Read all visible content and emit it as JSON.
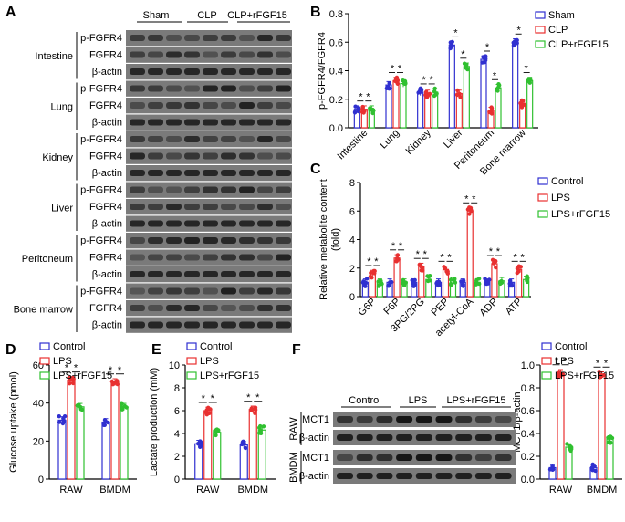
{
  "panels": {
    "A": {
      "letter": "A",
      "groups": [
        "Sham",
        "CLP",
        "CLP+rFGF15"
      ],
      "tissues": [
        {
          "name": "Intestine",
          "rows": [
            "p-FGFR4",
            "FGFR4",
            "β-actin"
          ]
        },
        {
          "name": "Lung",
          "rows": [
            "p-FGFR4",
            "FGFR4",
            "β-actin"
          ]
        },
        {
          "name": "Kidney",
          "rows": [
            "p-FGFR4",
            "FGFR4",
            "β-actin"
          ]
        },
        {
          "name": "Liver",
          "rows": [
            "p-FGFR4",
            "FGFR4",
            "β-actin"
          ]
        },
        {
          "name": "Peritoneum",
          "rows": [
            "p-FGFR4",
            "FGFR4",
            "β-actin"
          ]
        },
        {
          "name": "Bone marrow",
          "rows": [
            "p-FGFR4",
            "FGFR4",
            "β-actin"
          ]
        }
      ]
    },
    "F_blot": {
      "letter": "F",
      "groups": [
        "Control",
        "LPS",
        "LPS+rFGF15"
      ],
      "cells": [
        {
          "name": "RAW",
          "rows": [
            "MCT1",
            "β-actin"
          ]
        },
        {
          "name": "BMDM",
          "rows": [
            "MCT1",
            "β-actin"
          ]
        }
      ]
    }
  },
  "colors": {
    "control": "#3030d0",
    "treat": "#e83030",
    "rescue": "#30c030"
  },
  "chart_data": [
    {
      "id": "B",
      "letter": "B",
      "type": "bar",
      "ylabel": "p-FGFR4/FGFR4",
      "ylim": [
        0,
        0.8
      ],
      "yticks": [
        "0.0",
        "0.2",
        "0.4",
        "0.6",
        "0.8"
      ],
      "categories": [
        "Intestine",
        "Lung",
        "Kidney",
        "Liver",
        "Peritoneum",
        "Bone marrow"
      ],
      "legend": [
        "Sham",
        "CLP",
        "CLP+rFGF15"
      ],
      "series": [
        {
          "name": "Sham",
          "values": [
            0.13,
            0.3,
            0.25,
            0.58,
            0.48,
            0.6
          ]
        },
        {
          "name": "CLP",
          "values": [
            0.13,
            0.33,
            0.24,
            0.24,
            0.12,
            0.17
          ]
        },
        {
          "name": "CLP+rFGF15",
          "values": [
            0.13,
            0.31,
            0.25,
            0.43,
            0.28,
            0.33
          ]
        }
      ],
      "stars": "*"
    },
    {
      "id": "C",
      "letter": "C",
      "type": "bar",
      "ylabel": "Relative metabolite content (fold)",
      "ylim": [
        0,
        8
      ],
      "yticks": [
        "0",
        "2",
        "4",
        "6",
        "8"
      ],
      "categories": [
        "G6P",
        "F6P",
        "3PG/2PG",
        "PEP",
        "acetyl-CoA",
        "ADP",
        "ATP"
      ],
      "legend": [
        "Control",
        "LPS",
        "LPS+rFGF15"
      ],
      "series": [
        {
          "name": "Control",
          "values": [
            1.0,
            1.0,
            1.0,
            1.0,
            1.0,
            1.0,
            1.0
          ]
        },
        {
          "name": "LPS",
          "values": [
            1.6,
            2.7,
            2.1,
            1.9,
            6.0,
            2.3,
            1.9
          ]
        },
        {
          "name": "LPS+rFGF15",
          "values": [
            1.0,
            1.0,
            1.2,
            1.1,
            1.0,
            1.1,
            1.2
          ]
        }
      ],
      "stars": "*"
    },
    {
      "id": "D",
      "letter": "D",
      "type": "bar",
      "ylabel": "Glucose uptake (pmol)",
      "ylim": [
        0,
        60
      ],
      "yticks": [
        "0",
        "20",
        "40",
        "60"
      ],
      "categories": [
        "RAW",
        "BMDM"
      ],
      "legend": [
        "Control",
        "LPS",
        "LPS+rFGF15"
      ],
      "series": [
        {
          "name": "Control",
          "values": [
            31,
            30
          ]
        },
        {
          "name": "LPS",
          "values": [
            52,
            51
          ]
        },
        {
          "name": "LPS+rFGF15",
          "values": [
            38,
            38
          ]
        }
      ],
      "stars": "*"
    },
    {
      "id": "E",
      "letter": "E",
      "type": "bar",
      "ylabel": "Lactate production (mM)",
      "ylim": [
        0,
        10
      ],
      "yticks": [
        "0",
        "2",
        "4",
        "6",
        "8",
        "10"
      ],
      "categories": [
        "RAW",
        "BMDM"
      ],
      "legend": [
        "Control",
        "LPS",
        "LPS+rFGF15"
      ],
      "series": [
        {
          "name": "Control",
          "values": [
            3.1,
            3.0
          ]
        },
        {
          "name": "LPS",
          "values": [
            6.0,
            6.1
          ]
        },
        {
          "name": "LPS+rFGF15",
          "values": [
            4.1,
            4.3
          ]
        }
      ],
      "stars": "*"
    },
    {
      "id": "F",
      "letter": "F",
      "type": "bar",
      "ylabel": "MCT1/β-actin",
      "ylim": [
        0,
        1.0
      ],
      "yticks": [
        "0.0",
        "0.2",
        "0.4",
        "0.6",
        "0.8",
        "1.0"
      ],
      "categories": [
        "RAW",
        "BMDM"
      ],
      "legend": [
        "Control",
        "LPS",
        "LPS+rFGF15"
      ],
      "series": [
        {
          "name": "Control",
          "values": [
            0.1,
            0.1
          ]
        },
        {
          "name": "LPS",
          "values": [
            0.93,
            0.91
          ]
        },
        {
          "name": "LPS+rFGF15",
          "values": [
            0.28,
            0.35
          ]
        }
      ],
      "stars": "*"
    }
  ]
}
